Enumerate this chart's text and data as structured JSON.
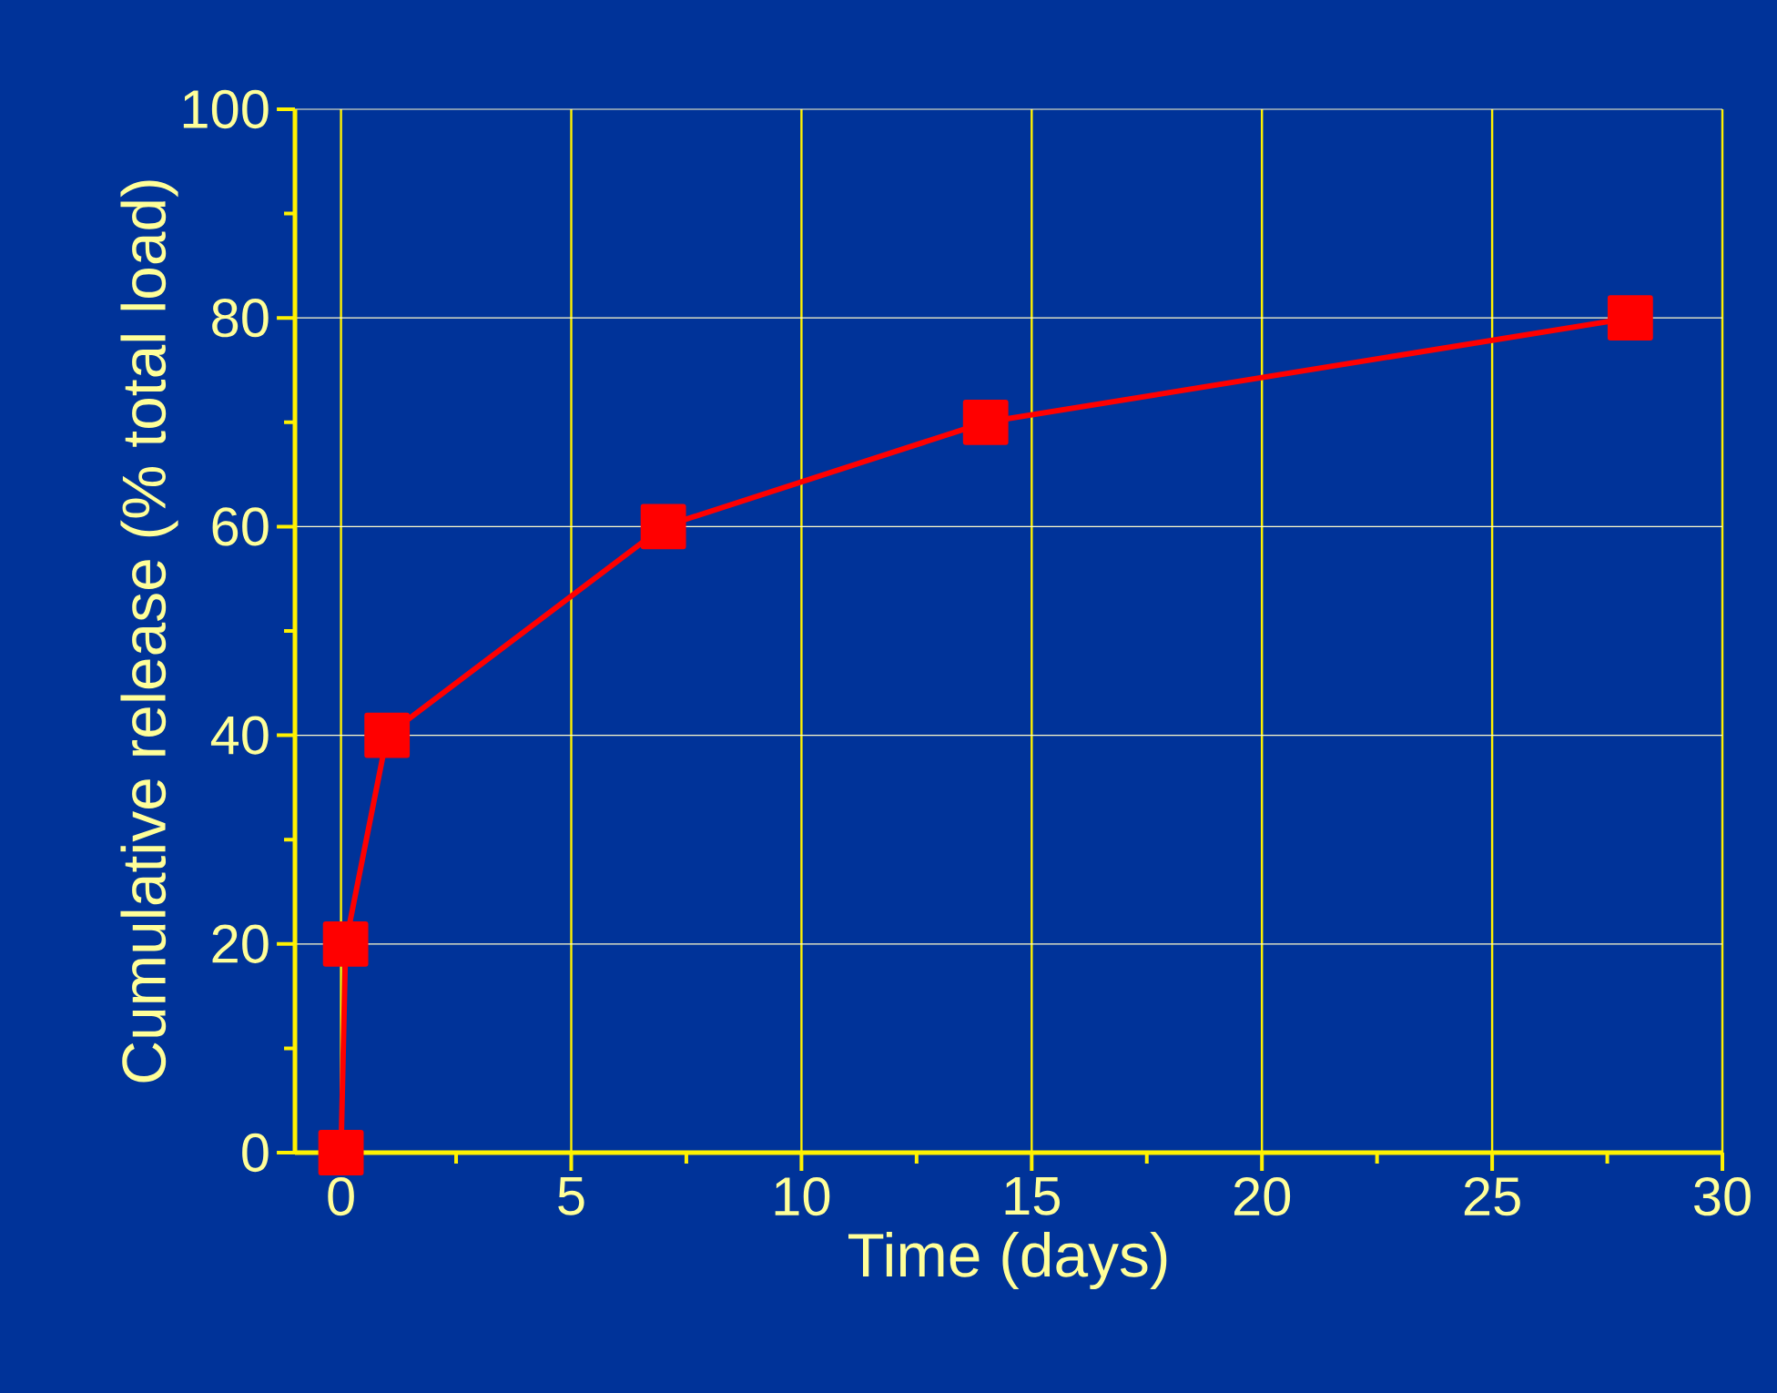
{
  "chart_data": {
    "type": "line",
    "xlabel": "Time (days)",
    "ylabel": "Cumulative release (% total load)",
    "x": [
      0,
      0.1,
      1,
      7,
      14,
      28
    ],
    "series": [
      {
        "color": "#ff0000",
        "values": [
          0,
          20,
          40,
          60,
          70,
          80
        ]
      }
    ],
    "xlim": [
      -1,
      30
    ],
    "ylim": [
      0,
      100
    ],
    "xticks": [
      0,
      5,
      10,
      15,
      20,
      25,
      30
    ],
    "yticks": [
      0,
      20,
      40,
      60,
      80,
      100
    ],
    "grid": true,
    "marker": "square",
    "line_style": "solid"
  }
}
